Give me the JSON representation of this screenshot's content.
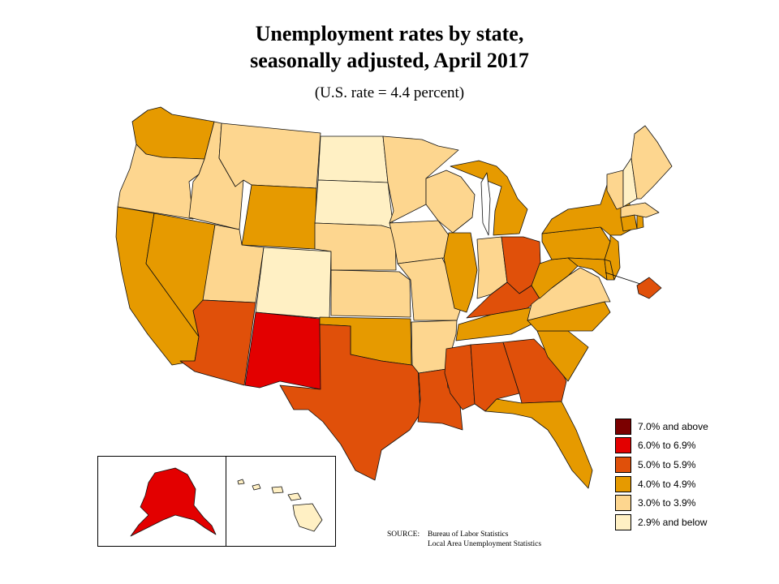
{
  "title_line1": "Unemployment rates by state,",
  "title_line2": "seasonally adjusted, April 2017",
  "subtitle": "(U.S. rate = 4.4 percent)",
  "legend": [
    {
      "label": "7.0% and above",
      "color": "#7b0000"
    },
    {
      "label": "6.0% to 6.9%",
      "color": "#e30000"
    },
    {
      "label": "5.0% to 5.9%",
      "color": "#e0500a"
    },
    {
      "label": "4.0% to 4.9%",
      "color": "#e69a00"
    },
    {
      "label": "3.0% to 3.9%",
      "color": "#fdd68f"
    },
    {
      "label": "2.9% and below",
      "color": "#fff0c4"
    }
  ],
  "source": {
    "label": "SOURCE:",
    "line1": "Bureau of Labor Statistics",
    "line2": "Local Area Unemployment Statistics"
  },
  "state_bins": {
    "WA": "4.0% to 4.9%",
    "OR": "3.0% to 3.9%",
    "CA": "4.0% to 4.9%",
    "NV": "4.0% to 4.9%",
    "ID": "3.0% to 3.9%",
    "MT": "3.0% to 3.9%",
    "WY": "4.0% to 4.9%",
    "UT": "3.0% to 3.9%",
    "CO": "2.9% and below",
    "AZ": "5.0% to 5.9%",
    "NM": "6.0% to 6.9%",
    "ND": "2.9% and below",
    "SD": "2.9% and below",
    "NE": "3.0% to 3.9%",
    "KS": "3.0% to 3.9%",
    "OK": "4.0% to 4.9%",
    "TX": "5.0% to 5.9%",
    "MN": "3.0% to 3.9%",
    "IA": "3.0% to 3.9%",
    "MO": "3.0% to 3.9%",
    "AR": "3.0% to 3.9%",
    "LA": "5.0% to 5.9%",
    "WI": "3.0% to 3.9%",
    "IL": "4.0% to 4.9%",
    "MI": "4.0% to 4.9%",
    "IN": "3.0% to 3.9%",
    "OH": "5.0% to 5.9%",
    "KY": "5.0% to 5.9%",
    "TN": "4.0% to 4.9%",
    "MS": "5.0% to 5.9%",
    "AL": "5.0% to 5.9%",
    "GA": "5.0% to 5.9%",
    "FL": "4.0% to 4.9%",
    "SC": "4.0% to 4.9%",
    "NC": "4.0% to 4.9%",
    "VA": "3.0% to 3.9%",
    "WV": "4.0% to 4.9%",
    "MD": "4.0% to 4.9%",
    "DE": "4.0% to 4.9%",
    "DC": "5.0% to 5.9%",
    "PA": "4.0% to 4.9%",
    "NJ": "4.0% to 4.9%",
    "NY": "4.0% to 4.9%",
    "CT": "4.0% to 4.9%",
    "RI": "4.0% to 4.9%",
    "MA": "3.0% to 3.9%",
    "VT": "3.0% to 3.9%",
    "NH": "2.9% and below",
    "ME": "3.0% to 3.9%",
    "AK": "6.0% to 6.9%",
    "HI": "2.9% and below"
  }
}
